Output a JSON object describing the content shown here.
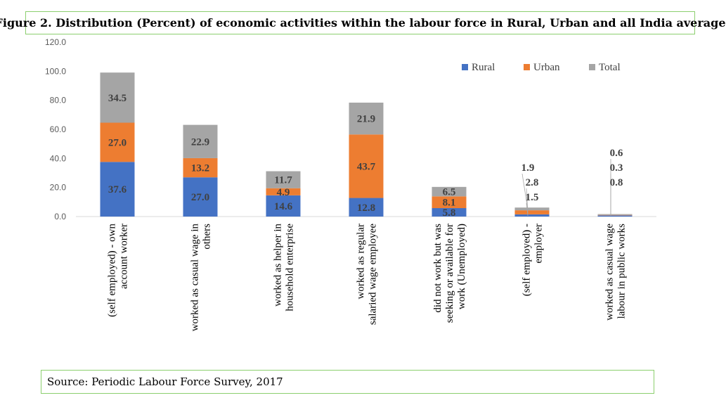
{
  "title": "Figure 2. Distribution (Percent) of economic activities within the labour force in Rural, Urban and all India average",
  "source": "Source: Periodic Labour Force Survey, 2017",
  "chart_data": {
    "type": "bar",
    "stacked": true,
    "categories": [
      [
        "(self employed) - own",
        "account worker"
      ],
      [
        "worked as casual wage in",
        "others"
      ],
      [
        "worked as helper in",
        "household enterprise"
      ],
      [
        "worked as regular",
        "salaried wage employee"
      ],
      [
        "did not work but was",
        "seeking or available for",
        "work (Unemployed)"
      ],
      [
        "(self employed) -",
        "employer"
      ],
      [
        "worked as casual wage",
        "labour in public works"
      ]
    ],
    "series": [
      {
        "name": "Rural",
        "color": "#4472c4",
        "values": [
          37.6,
          27.0,
          14.6,
          12.8,
          5.8,
          1.5,
          0.8
        ]
      },
      {
        "name": "Urban",
        "color": "#ed7d31",
        "values": [
          27.0,
          13.2,
          4.9,
          43.7,
          8.1,
          2.8,
          0.3
        ]
      },
      {
        "name": "Total",
        "color": "#a5a5a5",
        "values": [
          34.5,
          22.9,
          11.7,
          21.9,
          6.5,
          1.9,
          0.6
        ]
      }
    ],
    "data_labels": [
      [
        "37.6",
        "27.0",
        "14.6",
        "12.8",
        "5.8",
        "1.5",
        "0.8"
      ],
      [
        "27.0",
        "13.2",
        "4.9",
        "43.7",
        "8.1",
        "2.8",
        "0.3"
      ],
      [
        "34.5",
        "22.9",
        "11.7",
        "21.9",
        "6.5",
        "1.9",
        "0.6"
      ]
    ],
    "y_ticks": [
      "0.0",
      "20.0",
      "40.0",
      "60.0",
      "80.0",
      "100.0",
      "120.0"
    ],
    "ylim": [
      0,
      120
    ],
    "legend_position": "top-right",
    "grid": false
  }
}
